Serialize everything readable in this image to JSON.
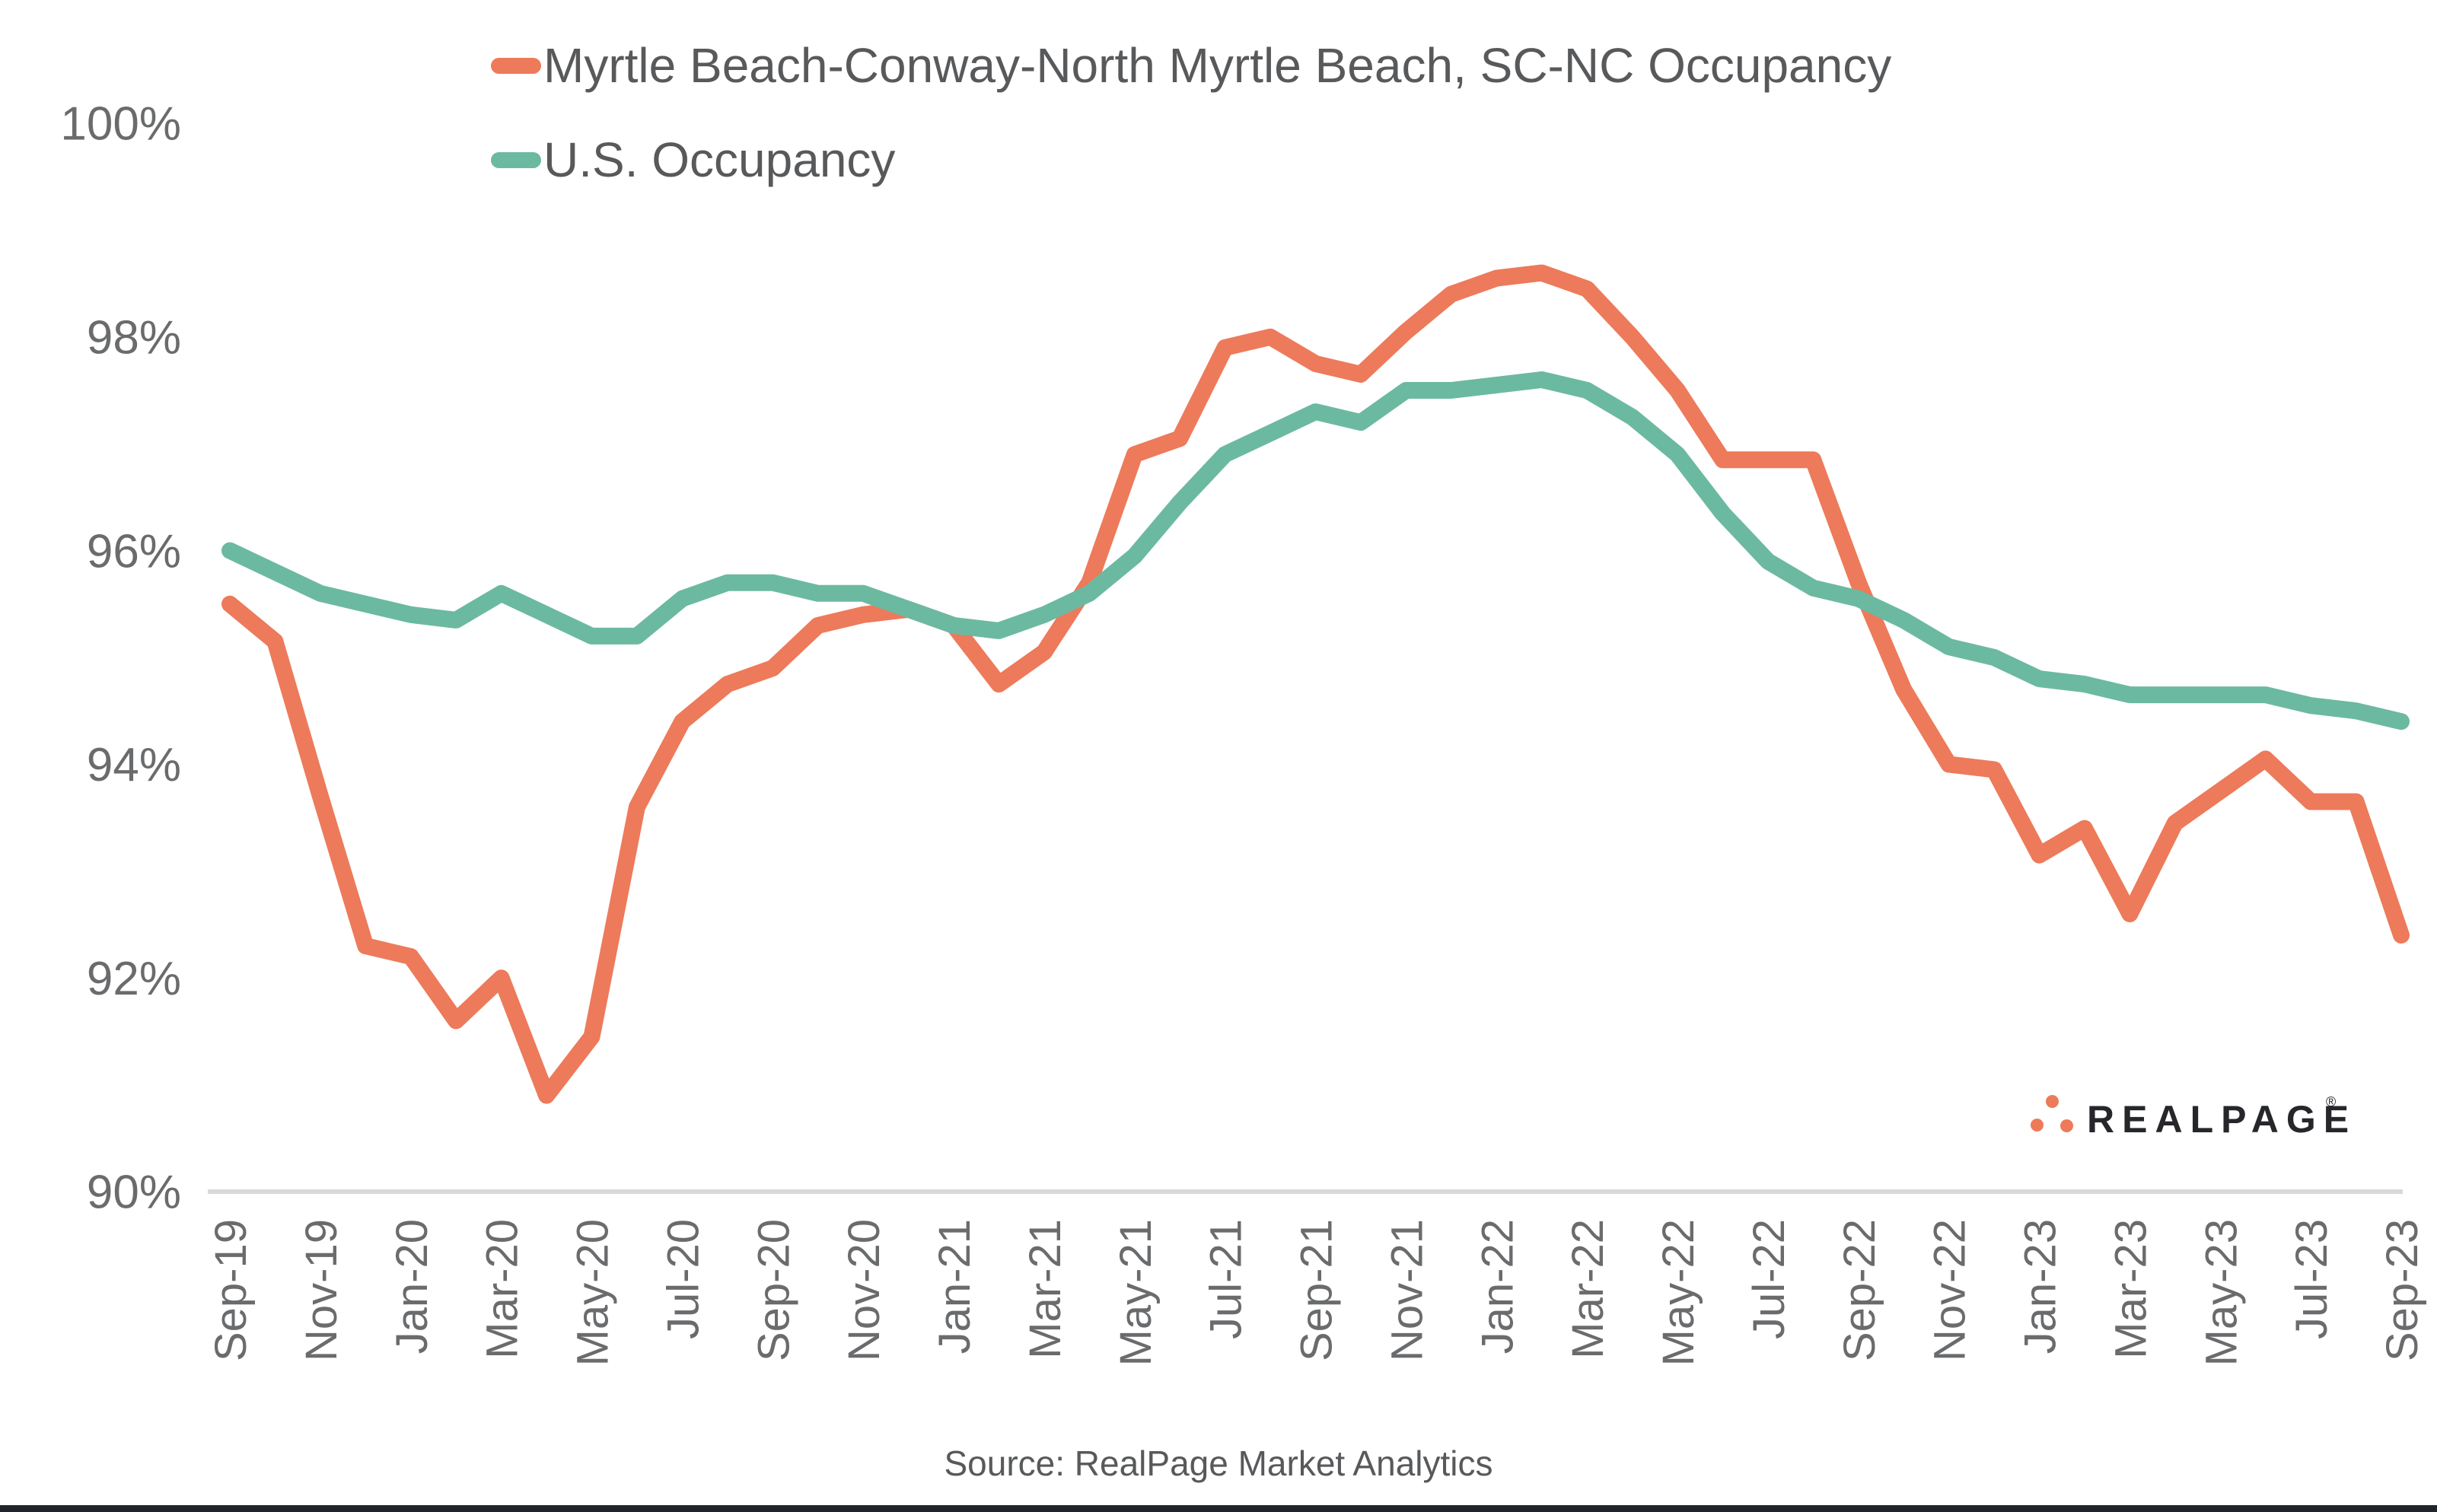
{
  "page": {
    "background": "#ffffff",
    "source_text": "Source: RealPage Market Analytics"
  },
  "branding": {
    "logo_text": "REALPAGE",
    "registered_mark": "®",
    "dot_color": "#ED7A5A",
    "wordmark_color": "#26272B"
  },
  "style": {
    "axis_text_color": "#6A6B6D",
    "legend_text_color": "#58595B",
    "axis_line_color": "#D9D9D9",
    "bottom_bar_color": "#21242B"
  },
  "chart_data": {
    "type": "line",
    "grid": "off",
    "legend_position": "top-left-inset",
    "ylim": [
      90,
      100
    ],
    "y_ticks": [
      {
        "value": 100,
        "label": "100%"
      },
      {
        "value": 98,
        "label": "98%"
      },
      {
        "value": 96,
        "label": "96%"
      },
      {
        "value": 94,
        "label": "94%"
      },
      {
        "value": 92,
        "label": "92%"
      },
      {
        "value": 90,
        "label": "90%"
      }
    ],
    "categories": [
      "Sep-19",
      "Oct-19",
      "Nov-19",
      "Dec-19",
      "Jan-20",
      "Feb-20",
      "Mar-20",
      "Apr-20",
      "May-20",
      "Jun-20",
      "Jul-20",
      "Aug-20",
      "Sep-20",
      "Oct-20",
      "Nov-20",
      "Dec-20",
      "Jan-21",
      "Feb-21",
      "Mar-21",
      "Apr-21",
      "May-21",
      "Jun-21",
      "Jul-21",
      "Aug-21",
      "Sep-21",
      "Oct-21",
      "Nov-21",
      "Dec-21",
      "Jan-22",
      "Feb-22",
      "Mar-22",
      "Apr-22",
      "May-22",
      "Jun-22",
      "Jul-22",
      "Aug-22",
      "Sep-22",
      "Oct-22",
      "Nov-22",
      "Dec-22",
      "Jan-23",
      "Feb-23",
      "Mar-23",
      "Apr-23",
      "May-23",
      "Jun-23",
      "Jul-23",
      "Aug-23",
      "Sep-23"
    ],
    "x_tick_labels": [
      "Sep-19",
      "Nov-19",
      "Jan-20",
      "Mar-20",
      "May-20",
      "Jul-20",
      "Sep-20",
      "Nov-20",
      "Jan-21",
      "Mar-21",
      "May-21",
      "Jul-21",
      "Sep-21",
      "Nov-21",
      "Jan-22",
      "Mar-22",
      "May-22",
      "Jul-22",
      "Sep-22",
      "Nov-22",
      "Jan-23",
      "Mar-23",
      "May-23",
      "Jul-23",
      "Sep-23"
    ],
    "series": [
      {
        "name": "Myrtle Beach-Conway-North Myrtle Beach, SC-NC Occupancy",
        "color": "#ED7A5A",
        "values": [
          95.5,
          95.15,
          93.7,
          92.3,
          92.2,
          91.6,
          92.0,
          90.9,
          91.45,
          93.6,
          94.4,
          94.75,
          94.9,
          95.3,
          95.4,
          95.45,
          95.3,
          94.75,
          95.05,
          95.7,
          96.9,
          97.05,
          97.9,
          98.0,
          97.75,
          97.65,
          98.05,
          98.4,
          98.55,
          98.6,
          98.45,
          98.0,
          97.5,
          96.85,
          96.85,
          96.85,
          95.7,
          94.7,
          94.0,
          93.95,
          93.15,
          93.4,
          92.6,
          93.45,
          93.75,
          94.05,
          93.65,
          93.65,
          92.4
        ]
      },
      {
        "name": "U.S. Occupancy",
        "color": "#6CB9A1",
        "values": [
          96.0,
          95.8,
          95.6,
          95.5,
          95.4,
          95.35,
          95.6,
          95.4,
          95.2,
          95.2,
          95.55,
          95.7,
          95.7,
          95.6,
          95.6,
          95.45,
          95.3,
          95.25,
          95.4,
          95.6,
          95.95,
          96.45,
          96.9,
          97.1,
          97.3,
          97.2,
          97.5,
          97.5,
          97.55,
          97.6,
          97.5,
          97.25,
          96.9,
          96.35,
          95.9,
          95.65,
          95.55,
          95.35,
          95.1,
          95.0,
          94.8,
          94.75,
          94.65,
          94.65,
          94.65,
          94.65,
          94.55,
          94.5,
          94.4
        ]
      }
    ]
  }
}
